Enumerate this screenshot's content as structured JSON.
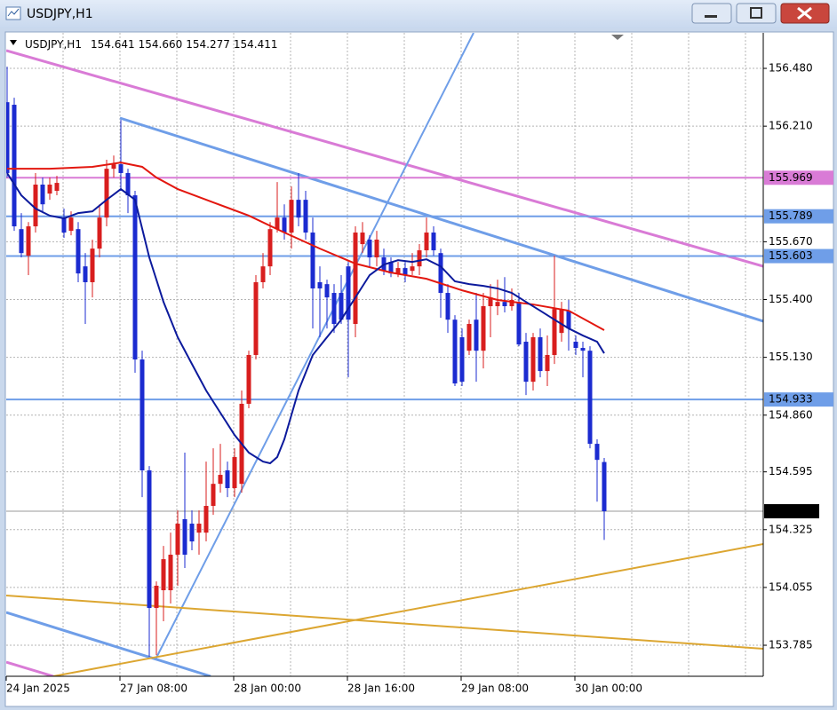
{
  "chart_data": {
    "type": "candlestick",
    "title": "USDJPY,H1",
    "header_quote": [
      "154.641",
      "154.660",
      "154.277",
      "154.411"
    ],
    "categories": [
      "24 Jan 2025",
      null,
      null,
      null,
      null,
      null,
      null,
      null,
      null,
      null,
      null,
      null,
      null,
      null,
      null,
      null,
      "27 Jan 08:00",
      null,
      null,
      null,
      null,
      null,
      null,
      null,
      null,
      null,
      null,
      null,
      null,
      null,
      null,
      null,
      "28 Jan 00:00",
      null,
      null,
      null,
      null,
      null,
      null,
      null,
      null,
      null,
      null,
      null,
      null,
      null,
      null,
      null,
      "28 Jan 16:00",
      null,
      null,
      null,
      null,
      null,
      null,
      null,
      null,
      null,
      null,
      null,
      null,
      null,
      null,
      null,
      "29 Jan 08:00",
      null,
      null,
      null,
      null,
      null,
      null,
      null,
      null,
      null,
      null,
      null,
      null,
      null,
      null,
      null,
      "30 Jan 00:00",
      null,
      null,
      null,
      null
    ],
    "open": [
      156.322,
      156.31,
      155.729,
      155.605,
      155.742,
      155.937,
      155.895,
      155.908,
      155.783,
      155.721,
      155.729,
      155.555,
      155.481,
      155.638,
      155.783,
      156.011,
      156.032,
      155.991,
      155.887,
      155.12,
      154.602,
      153.959,
      154.042,
      154.042,
      154.208,
      154.374,
      154.353,
      154.311,
      154.311,
      154.436,
      154.539,
      154.602,
      154.519,
      154.539,
      154.913,
      155.141,
      155.481,
      155.555,
      155.729,
      155.783,
      155.713,
      155.866,
      155.866,
      155.713,
      155.481,
      155.472,
      155.431,
      155.431,
      155.555,
      155.286,
      155.659,
      155.68,
      155.597,
      155.597,
      155.576,
      155.522,
      155.547,
      155.534,
      155.555,
      155.63,
      155.713,
      155.617,
      155.431,
      155.306,
      155.224,
      155.161,
      155.306,
      155.161,
      155.369,
      155.369,
      155.389,
      155.369,
      155.389,
      155.203,
      155.016,
      155.224,
      155.066,
      155.141,
      155.244,
      155.348,
      155.203,
      155.174,
      155.161,
      154.726,
      154.641
    ],
    "high": [
      156.488,
      156.343,
      155.804,
      155.762,
      155.991,
      155.97,
      155.97,
      155.978,
      155.825,
      155.812,
      155.762,
      155.617,
      155.68,
      155.845,
      156.053,
      156.073,
      156.239,
      156.011,
      155.908,
      155.161,
      154.622,
      154.083,
      154.249,
      154.311,
      154.415,
      154.685,
      154.415,
      154.415,
      154.643,
      154.705,
      154.726,
      154.643,
      154.705,
      154.975,
      155.161,
      155.514,
      155.617,
      155.762,
      155.949,
      155.845,
      155.928,
      155.991,
      155.908,
      155.783,
      155.555,
      155.493,
      155.472,
      155.514,
      155.576,
      155.742,
      155.762,
      155.7,
      155.721,
      155.638,
      155.597,
      155.576,
      155.576,
      155.617,
      155.659,
      155.783,
      155.742,
      155.638,
      155.472,
      155.327,
      155.265,
      155.306,
      155.431,
      155.431,
      155.472,
      155.493,
      155.505,
      155.452,
      155.431,
      155.244,
      155.244,
      155.265,
      155.232,
      155.605,
      155.389,
      155.398,
      155.232,
      155.203,
      155.182,
      154.747,
      154.66
    ],
    "low": [
      155.97,
      155.721,
      155.597,
      155.514,
      155.713,
      155.804,
      155.866,
      155.887,
      155.688,
      155.7,
      155.481,
      155.286,
      155.41,
      155.597,
      155.742,
      155.97,
      155.908,
      155.804,
      155.058,
      154.477,
      153.731,
      153.739,
      153.897,
      153.98,
      154.063,
      154.146,
      154.229,
      154.208,
      154.27,
      154.394,
      154.498,
      154.477,
      154.477,
      154.498,
      154.892,
      155.12,
      155.452,
      155.514,
      155.713,
      155.68,
      155.638,
      155.742,
      155.68,
      155.265,
      155.224,
      155.265,
      155.244,
      155.286,
      155.037,
      155.224,
      155.617,
      155.555,
      155.555,
      155.514,
      155.505,
      155.505,
      155.481,
      155.514,
      155.514,
      155.597,
      155.605,
      155.315,
      155.244,
      154.996,
      154.996,
      155.141,
      155.016,
      155.078,
      155.224,
      155.327,
      155.34,
      155.348,
      155.182,
      154.954,
      154.975,
      155.037,
      154.996,
      155.099,
      155.203,
      155.161,
      155.141,
      155.037,
      154.705,
      154.456,
      154.277
    ],
    "close": [
      155.991,
      155.742,
      155.617,
      155.742,
      155.937,
      155.845,
      155.937,
      155.945,
      155.713,
      155.783,
      155.522,
      155.481,
      155.638,
      155.783,
      156.011,
      156.032,
      155.991,
      155.887,
      155.12,
      154.602,
      153.959,
      154.063,
      154.187,
      154.208,
      154.353,
      154.208,
      154.27,
      154.353,
      154.436,
      154.539,
      154.581,
      154.519,
      154.664,
      154.913,
      155.141,
      155.481,
      155.555,
      155.729,
      155.783,
      155.713,
      155.866,
      155.783,
      155.713,
      155.452,
      155.452,
      155.41,
      155.286,
      155.306,
      155.306,
      155.713,
      155.713,
      155.597,
      155.68,
      155.534,
      155.522,
      155.547,
      155.514,
      155.555,
      155.63,
      155.713,
      155.63,
      155.431,
      155.306,
      155.008,
      155.016,
      155.286,
      155.161,
      155.369,
      155.41,
      155.389,
      155.369,
      155.398,
      155.19,
      155.016,
      155.224,
      155.066,
      155.141,
      155.356,
      155.356,
      155.265,
      155.174,
      155.161,
      154.726,
      154.651,
      154.411
    ],
    "up_color": "#d81e1e",
    "down_color": "#1b2bd0",
    "moving_averages": [
      {
        "color": "#e3170f",
        "x": [
          0,
          6,
          12,
          16,
          19,
          21,
          24,
          29,
          34,
          39,
          44,
          49,
          54,
          59,
          64,
          69,
          74,
          79,
          84
        ],
        "values": [
          156.011,
          156.011,
          156.02,
          156.04,
          156.02,
          155.97,
          155.916,
          155.854,
          155.792,
          155.713,
          155.638,
          155.568,
          155.526,
          155.497,
          155.443,
          155.398,
          155.377,
          155.348,
          155.257
        ]
      },
      {
        "color": "#0c1a9c",
        "x": [
          0,
          2,
          4,
          6,
          8,
          10,
          12,
          14,
          16,
          18,
          20,
          22,
          24,
          26,
          28,
          30,
          32,
          34,
          36,
          37,
          38,
          39,
          41,
          43,
          45,
          47,
          49,
          51,
          53,
          55,
          57,
          59,
          61,
          63,
          65,
          67,
          69,
          71,
          73,
          75,
          77,
          79,
          81,
          83,
          84
        ],
        "values": [
          155.991,
          155.887,
          155.825,
          155.792,
          155.779,
          155.804,
          155.812,
          155.866,
          155.916,
          155.866,
          155.597,
          155.389,
          155.224,
          155.099,
          154.975,
          154.871,
          154.767,
          154.685,
          154.643,
          154.635,
          154.664,
          154.747,
          154.975,
          155.141,
          155.224,
          155.306,
          155.41,
          155.514,
          155.563,
          155.584,
          155.576,
          155.588,
          155.555,
          155.485,
          155.472,
          155.464,
          155.452,
          155.431,
          155.389,
          155.348,
          155.306,
          155.265,
          155.232,
          155.203,
          155.149
        ]
      }
    ],
    "hlines": [
      {
        "value": 155.969,
        "color": "#d97bd6"
      },
      {
        "value": 155.789,
        "color": "#6f9ee8"
      },
      {
        "value": 155.603,
        "color": "#6f9ee8"
      },
      {
        "value": 154.933,
        "color": "#6f9ee8"
      }
    ],
    "last_line_color": "#9a9a9a",
    "ylim": [
      153.64,
      156.646
    ],
    "yticks": [
      {
        "value": 156.48,
        "label": "156.480"
      },
      {
        "value": 156.21,
        "label": "156.210"
      },
      {
        "value": 155.67,
        "label": "155.670"
      },
      {
        "value": 155.4,
        "label": "155.400"
      },
      {
        "value": 155.13,
        "label": "155.130"
      },
      {
        "value": 154.86,
        "label": "154.860"
      },
      154.595,
      154.325,
      154.055,
      153.785
    ],
    "grid": true
  }
}
